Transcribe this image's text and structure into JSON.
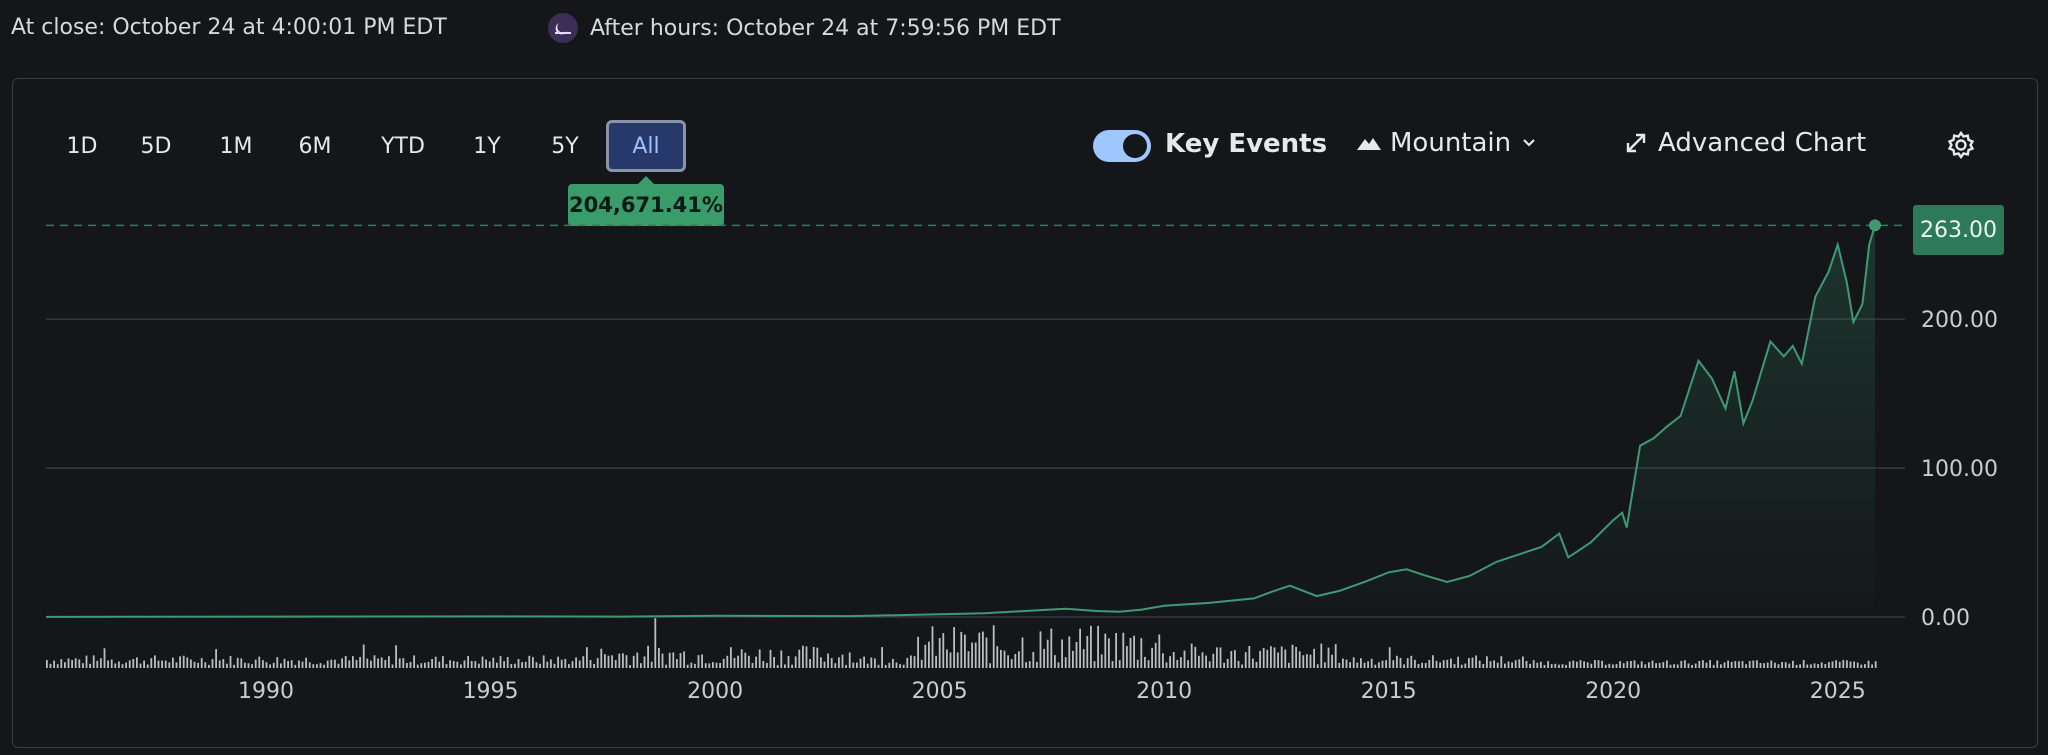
{
  "header": {
    "close_text": "At close: October 24 at 4:00:01 PM EDT",
    "after_hours_text": "After hours: October 24 at 7:59:56 PM EDT"
  },
  "ranges": [
    "1D",
    "5D",
    "1M",
    "6M",
    "YTD",
    "1Y",
    "5Y",
    "All"
  ],
  "active_range": "All",
  "change_badge": "204,671.41%",
  "toolbar": {
    "key_events_label": "Key Events",
    "key_events_on": true,
    "chart_style_label": "Mountain",
    "advanced_chart_label": "Advanced Chart"
  },
  "current_price_label": "263.00",
  "colors": {
    "line": "#3f9a73",
    "badge": "#3a9b6b",
    "price_badge": "#2c7a5a",
    "active_range_bg": "#27386a",
    "toggle": "#9ec7ff",
    "volume": "#d9dbdf"
  },
  "icons": {
    "after_hours": "moon-icon",
    "mountain": "mountain-icon",
    "chevron": "chevron-down-icon",
    "advanced": "expand-arrows-icon",
    "settings": "gear-icon"
  },
  "chart_data": {
    "type": "area",
    "title": "",
    "xlabel": "",
    "ylabel": "",
    "x_ticks": [
      "1990",
      "1995",
      "2000",
      "2005",
      "2010",
      "2015",
      "2020",
      "2025"
    ],
    "y_ticks": [
      "0.00",
      "100.00",
      "200.00"
    ],
    "ylim": [
      0,
      263
    ],
    "xlim": [
      1985.1,
      2025.83
    ],
    "grid": true,
    "reference_line": 263.0,
    "series": [
      {
        "values": [
          [
            1985.1,
            0.1
          ],
          [
            1990,
            0.3
          ],
          [
            1995,
            0.4
          ],
          [
            1998,
            0.3
          ],
          [
            2000,
            0.8
          ],
          [
            2003,
            0.6
          ],
          [
            2005,
            1.8
          ],
          [
            2006,
            2.5
          ],
          [
            2007,
            4.2
          ],
          [
            2007.8,
            5.5
          ],
          [
            2008.5,
            4.0
          ],
          [
            2009,
            3.5
          ],
          [
            2009.5,
            5.0
          ],
          [
            2010,
            7.5
          ],
          [
            2011,
            9.5
          ],
          [
            2012,
            12.5
          ],
          [
            2012.4,
            17.0
          ],
          [
            2012.8,
            21.0
          ],
          [
            2013.4,
            14.0
          ],
          [
            2013.9,
            17.5
          ],
          [
            2014.5,
            24.0
          ],
          [
            2015.0,
            30.0
          ],
          [
            2015.4,
            32.0
          ],
          [
            2015.8,
            28.0
          ],
          [
            2016.3,
            23.5
          ],
          [
            2016.8,
            27.5
          ],
          [
            2017.4,
            37.0
          ],
          [
            2017.9,
            42.0
          ],
          [
            2018.4,
            47.0
          ],
          [
            2018.8,
            56.0
          ],
          [
            2019.0,
            40.0
          ],
          [
            2019.5,
            50.0
          ],
          [
            2020.0,
            65.0
          ],
          [
            2020.2,
            70.0
          ],
          [
            2020.3,
            60.0
          ],
          [
            2020.6,
            115.0
          ],
          [
            2020.9,
            120.0
          ],
          [
            2021.2,
            128.0
          ],
          [
            2021.5,
            135.0
          ],
          [
            2021.9,
            172.0
          ],
          [
            2022.2,
            160.0
          ],
          [
            2022.5,
            140.0
          ],
          [
            2022.7,
            165.0
          ],
          [
            2022.9,
            130.0
          ],
          [
            2023.1,
            145.0
          ],
          [
            2023.5,
            185.0
          ],
          [
            2023.8,
            175.0
          ],
          [
            2024.0,
            182.0
          ],
          [
            2024.2,
            170.0
          ],
          [
            2024.5,
            215.0
          ],
          [
            2024.8,
            232.0
          ],
          [
            2025.0,
            250.0
          ],
          [
            2025.2,
            225.0
          ],
          [
            2025.35,
            198.0
          ],
          [
            2025.55,
            210.0
          ],
          [
            2025.7,
            250.0
          ],
          [
            2025.83,
            263.0
          ]
        ]
      }
    ]
  }
}
